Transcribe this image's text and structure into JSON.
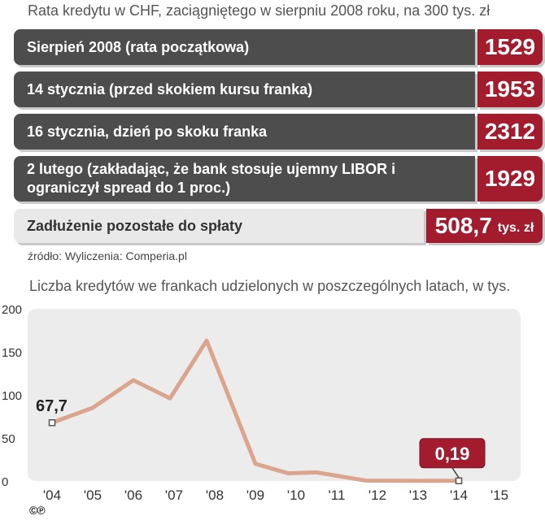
{
  "top": {
    "title": "Rata kredytu w CHF, zaciągniętego w sierpniu 2008 roku, na 300 tys. zł",
    "rows": [
      {
        "label": "Sierpień 2008 (rata początkowa)",
        "value": "1529"
      },
      {
        "label": "14 stycznia (przed skokiem kursu franka)",
        "value": "1953"
      },
      {
        "label": "16 stycznia, dzień po skoku franka",
        "value": "2312"
      },
      {
        "label": "2 lutego (zakładając, że bank stosuje ujemny LIBOR i ograniczył spread do 1 proc.)",
        "value": "1929"
      }
    ],
    "total": {
      "label": "Zadłużenie pozostałe do spłaty",
      "value": "508,7",
      "unit": "tys. zł"
    },
    "source": "źródło: Wyliczenia: Comperia.pl"
  },
  "colors": {
    "bar_dark": "#4d4d4d",
    "accent": "#a31c2e",
    "line": "#dba58d",
    "plot_bg": "#ececec"
  },
  "chart_data": {
    "type": "line",
    "title": "Liczba kredytów we frankach udzielonych w poszczególnych latach, w tys.",
    "categories": [
      "'04",
      "'05",
      "'06",
      "'07",
      "'08",
      "'09",
      "'10",
      "'11",
      "'12",
      "'13",
      "'14",
      "'15"
    ],
    "values": [
      67.7,
      85,
      117,
      96,
      163,
      20,
      9,
      10,
      0.5,
      0.2,
      0.19
    ],
    "x": [
      2004.0,
      2005.0,
      2006.0,
      2006.9,
      2007.8,
      2009.0,
      2009.8,
      2010.5,
      2011.7,
      2012.9,
      2014.0
    ],
    "ylim": [
      0,
      200
    ],
    "yticks": [
      0,
      50,
      100,
      150,
      200
    ],
    "annotations": [
      {
        "label": "67,7",
        "x": 2004.0,
        "y": 67.7
      },
      {
        "label": "0,19",
        "x": 2014.0,
        "y": 0.19
      }
    ],
    "grid": false,
    "legend": "none"
  },
  "footer": {
    "cc": "©℗"
  }
}
